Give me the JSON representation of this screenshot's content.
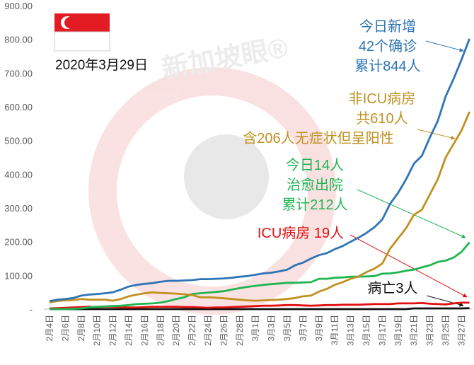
{
  "chart_data": {
    "type": "line",
    "watermark": "新加坡眼®",
    "date_text": "2020年3月29日",
    "categories": [
      "2月4日",
      null,
      "2月6日",
      null,
      "2月8日",
      null,
      "2月10日",
      null,
      "2月12日",
      null,
      "2月14日",
      null,
      "2月16日",
      null,
      "2月18日",
      null,
      "2月20日",
      null,
      "2月22日",
      null,
      "2月24日",
      null,
      "2月26日",
      null,
      "2月28日",
      null,
      "3月1日",
      null,
      "3月3日",
      null,
      "3月5日",
      null,
      "3月7日",
      null,
      "3月9日",
      null,
      "3月11日",
      null,
      "3月13日",
      null,
      "3月15日",
      null,
      "3月17日",
      null,
      "3月19日",
      null,
      "3月21日",
      null,
      "3月23日",
      null,
      "3月25日",
      null,
      "3月27日",
      null
    ],
    "series": [
      {
        "color": "#2e75b6",
        "values": [
          24,
          28,
          30,
          33,
          40,
          43,
          45,
          47,
          50,
          58,
          67,
          72,
          75,
          77,
          81,
          84,
          84,
          85,
          86,
          89,
          89,
          90,
          91,
          93,
          96,
          98,
          102,
          106,
          108,
          112,
          117,
          130,
          138,
          150,
          160,
          166,
          178,
          187,
          200,
          212,
          226,
          243,
          266,
          313,
          345,
          385,
          432,
          455,
          509,
          558,
          631,
          683,
          740,
          802
        ]
      },
      {
        "color": "#c09020",
        "values": [
          20,
          24,
          26,
          27,
          30,
          28,
          28,
          28,
          25,
          30,
          38,
          43,
          47,
          50,
          48,
          47,
          46,
          44,
          42,
          35,
          35,
          34,
          32,
          30,
          28,
          26,
          25,
          26,
          27,
          28,
          30,
          33,
          38,
          40,
          52,
          60,
          72,
          80,
          90,
          97,
          110,
          120,
          135,
          180,
          210,
          240,
          280,
          295,
          340,
          385,
          450,
          490,
          530,
          585
        ]
      },
      {
        "color": "#1fb552",
        "values": [
          0,
          0,
          0,
          1,
          2,
          5,
          7,
          8,
          9,
          10,
          12,
          15,
          16,
          17,
          19,
          24,
          30,
          35,
          45,
          47,
          49,
          51,
          53,
          58,
          62,
          66,
          69,
          72,
          74,
          76,
          78,
          78,
          79,
          80,
          90,
          90,
          93,
          94,
          96,
          96,
          97,
          98,
          105,
          106,
          109,
          114,
          117,
          124,
          130,
          140,
          144,
          153,
          170,
          198
        ]
      },
      {
        "color": "#e01010",
        "values": [
          2,
          3,
          4,
          5,
          6,
          7,
          6,
          7,
          7,
          6,
          5,
          5,
          6,
          7,
          7,
          7,
          7,
          6,
          6,
          5,
          4,
          5,
          5,
          6,
          7,
          8,
          9,
          10,
          10,
          11,
          12,
          12,
          11,
          10,
          11,
          12,
          12,
          13,
          13,
          13,
          14,
          15,
          15,
          15,
          17,
          17,
          17,
          18,
          16,
          15,
          14,
          17,
          19,
          19
        ]
      },
      {
        "color": "#111111",
        "values": [
          0,
          0,
          0,
          0,
          0,
          0,
          0,
          0,
          0,
          0,
          0,
          0,
          0,
          0,
          0,
          0,
          0,
          0,
          0,
          0,
          0,
          0,
          0,
          0,
          0,
          0,
          0,
          0,
          0,
          0,
          0,
          0,
          0,
          0,
          0,
          0,
          0,
          0,
          0,
          0,
          0,
          0,
          0,
          0,
          0,
          0,
          2,
          2,
          2,
          2,
          2,
          2,
          2,
          3
        ]
      }
    ],
    "annotations": [
      {
        "color": "#2e75b6",
        "lines": [
          "今日新增",
          "42个确诊",
          "累计844人"
        ]
      },
      {
        "color": "#c09020",
        "lines": [
          "非ICU病房",
          "共610人",
          "含206人无症状但呈阳性"
        ]
      },
      {
        "color": "#1fb552",
        "lines": [
          "今日14人",
          "治愈出院",
          "累计212人"
        ]
      },
      {
        "color": "#e01010",
        "lines": [
          "ICU病房 19人"
        ]
      },
      {
        "color": "#111111",
        "lines": [
          "病亡3人"
        ]
      }
    ],
    "ylim": [
      0,
      900
    ],
    "yticks": [
      {
        "value": 0,
        "label": "-"
      },
      {
        "value": 100,
        "label": "100.00"
      },
      {
        "value": 200,
        "label": "200.00"
      },
      {
        "value": 300,
        "label": "300.00"
      },
      {
        "value": 400,
        "label": "400.00"
      },
      {
        "value": 500,
        "label": "500.00"
      },
      {
        "value": 600,
        "label": "600.00"
      },
      {
        "value": 700,
        "label": "700.00"
      },
      {
        "value": 800,
        "label": "800.00"
      },
      {
        "value": 900,
        "label": "900.00"
      }
    ]
  }
}
